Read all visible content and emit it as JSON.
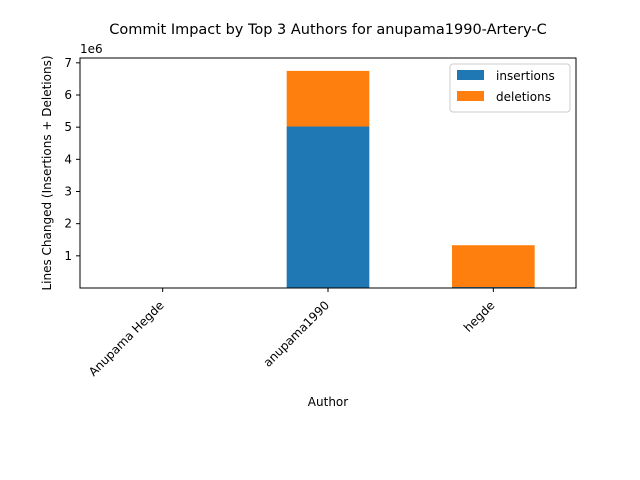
{
  "chart_data": {
    "type": "bar",
    "stacked": true,
    "title": "Commit Impact by Top 3 Authors for anupama1990-Artery-C",
    "xlabel": "Author",
    "ylabel": "Lines Changed (Insertions + Deletions)",
    "offset_label": "1e6",
    "categories": [
      "Anupama Hegde",
      "anupama1990",
      "hegde"
    ],
    "series": [
      {
        "name": "insertions",
        "values": [
          0,
          5020000,
          30000
        ],
        "color": "#1f77b4"
      },
      {
        "name": "deletions",
        "values": [
          0,
          1730000,
          1300000
        ],
        "color": "#ff7f0e"
      }
    ],
    "ylim": [
      0,
      7150000
    ],
    "yticks": [
      1000000,
      2000000,
      3000000,
      4000000,
      5000000,
      6000000,
      7000000
    ],
    "ytick_labels": [
      "1",
      "2",
      "3",
      "4",
      "5",
      "6",
      "7"
    ],
    "legend_position": "top-right",
    "grid": false
  }
}
